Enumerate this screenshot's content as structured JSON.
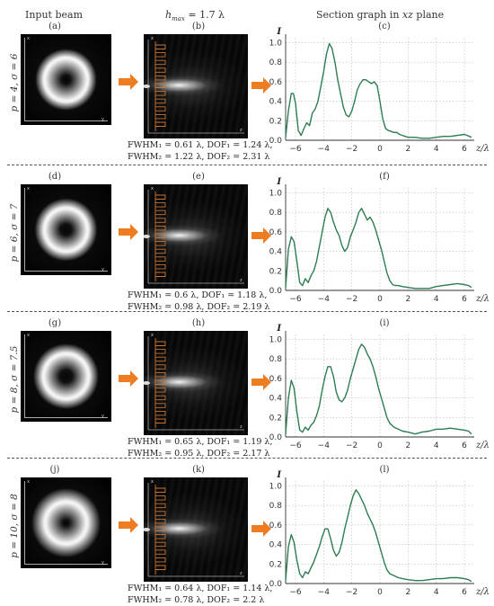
{
  "headers": {
    "input_beam": "Input beam",
    "hmax": "h",
    "hmax_sub": "max",
    "hmax_value": " = 1.7 λ",
    "section_graph": "Section graph in ",
    "section_graph_italic": "xz",
    "section_graph_tail": " plane"
  },
  "axis": {
    "x_label": "z/λ",
    "y_label": "I",
    "x_ticks": [
      -6,
      -4,
      -2,
      0,
      2,
      4,
      6
    ],
    "y_ticks": [
      "0.0",
      "0.2",
      "0.4",
      "0.6",
      "0.8",
      "1.0"
    ],
    "panel_axis_x": "x",
    "panel_axis_y": "y",
    "panel_axis_z": "z"
  },
  "colors": {
    "curve": "#2e7d52",
    "arrow": "#ee7d22",
    "element": "#c87533"
  },
  "rows": [
    {
      "param": "p = 4, σ = 6",
      "labels": [
        "(a)",
        "(b)",
        "(c)"
      ],
      "fwhm1": "FWHM₁ = 0.61 λ, DOF₁ = 1.24 λ,",
      "fwhm2": "FWHM₂ = 1.22 λ, DOF₂ = 2.31 λ",
      "ring": {
        "inner": 0.14,
        "peak": 0.52,
        "outer": 0.8
      },
      "chart_data": {
        "type": "line",
        "x": [
          -6.7,
          -6.5,
          -6.3,
          -6.15,
          -6.0,
          -5.8,
          -5.6,
          -5.4,
          -5.2,
          -5.0,
          -4.8,
          -4.6,
          -4.4,
          -4.2,
          -4.0,
          -3.8,
          -3.6,
          -3.4,
          -3.2,
          -3.0,
          -2.8,
          -2.6,
          -2.4,
          -2.2,
          -2.0,
          -1.8,
          -1.6,
          -1.4,
          -1.2,
          -1.0,
          -0.8,
          -0.6,
          -0.4,
          -0.2,
          0.0,
          0.2,
          0.4,
          0.6,
          0.8,
          1.0,
          1.2,
          1.4,
          1.6,
          1.8,
          2.0,
          2.5,
          3.0,
          3.5,
          4.0,
          4.5,
          5.0,
          5.5,
          6.0,
          6.2,
          6.5
        ],
        "y": [
          0.03,
          0.3,
          0.48,
          0.48,
          0.38,
          0.1,
          0.05,
          0.12,
          0.18,
          0.15,
          0.28,
          0.32,
          0.4,
          0.55,
          0.7,
          0.88,
          0.99,
          0.94,
          0.8,
          0.62,
          0.48,
          0.34,
          0.26,
          0.24,
          0.3,
          0.4,
          0.52,
          0.58,
          0.62,
          0.62,
          0.6,
          0.58,
          0.6,
          0.56,
          0.4,
          0.22,
          0.12,
          0.1,
          0.09,
          0.08,
          0.08,
          0.06,
          0.05,
          0.04,
          0.03,
          0.03,
          0.02,
          0.02,
          0.03,
          0.04,
          0.04,
          0.05,
          0.06,
          0.05,
          0.03
        ],
        "xlim": [
          -6.7,
          6.7
        ],
        "ylim": [
          0,
          1.05
        ]
      }
    },
    {
      "param": "p = 6, σ = 7",
      "labels": [
        "(d)",
        "(e)",
        "(f)"
      ],
      "fwhm1": "FWHM₁ = 0.6 λ, DOF₁ = 1.18 λ,",
      "fwhm2": "FWHM₂ = 0.98 λ, DOF₂ = 2.19 λ",
      "ring": {
        "inner": 0.18,
        "peak": 0.52,
        "outer": 0.82
      },
      "chart_data": {
        "type": "line",
        "x": [
          -6.7,
          -6.5,
          -6.3,
          -6.1,
          -5.9,
          -5.7,
          -5.5,
          -5.3,
          -5.1,
          -4.9,
          -4.7,
          -4.5,
          -4.3,
          -4.1,
          -3.9,
          -3.7,
          -3.5,
          -3.3,
          -3.1,
          -2.9,
          -2.7,
          -2.5,
          -2.3,
          -2.1,
          -1.9,
          -1.7,
          -1.5,
          -1.3,
          -1.1,
          -0.9,
          -0.7,
          -0.5,
          -0.3,
          -0.1,
          0.1,
          0.3,
          0.5,
          0.7,
          0.9,
          1.1,
          1.3,
          1.6,
          2.0,
          2.5,
          3.0,
          3.5,
          4.0,
          4.5,
          5.0,
          5.5,
          6.0,
          6.3,
          6.5
        ],
        "y": [
          0.03,
          0.42,
          0.55,
          0.5,
          0.3,
          0.08,
          0.05,
          0.12,
          0.08,
          0.15,
          0.2,
          0.3,
          0.45,
          0.6,
          0.75,
          0.84,
          0.8,
          0.7,
          0.62,
          0.56,
          0.46,
          0.4,
          0.44,
          0.55,
          0.62,
          0.7,
          0.8,
          0.84,
          0.78,
          0.72,
          0.75,
          0.7,
          0.62,
          0.52,
          0.42,
          0.3,
          0.18,
          0.1,
          0.06,
          0.05,
          0.05,
          0.04,
          0.03,
          0.02,
          0.02,
          0.02,
          0.04,
          0.05,
          0.06,
          0.07,
          0.06,
          0.05,
          0.03
        ],
        "xlim": [
          -6.7,
          6.7
        ],
        "ylim": [
          0,
          1.05
        ]
      }
    },
    {
      "param": "p = 8, σ = 7.5",
      "labels": [
        "(g)",
        "(h)",
        "(i)"
      ],
      "fwhm1": "FWHM₁ = 0.65 λ, DOF₁ = 1.19 λ,",
      "fwhm2": "FWHM₂ = 0.95 λ, DOF₂ = 2.17 λ",
      "ring": {
        "inner": 0.2,
        "peak": 0.55,
        "outer": 0.86
      },
      "chart_data": {
        "type": "line",
        "x": [
          -6.7,
          -6.5,
          -6.3,
          -6.1,
          -5.9,
          -5.7,
          -5.5,
          -5.3,
          -5.1,
          -4.9,
          -4.7,
          -4.5,
          -4.3,
          -4.1,
          -3.9,
          -3.7,
          -3.5,
          -3.3,
          -3.1,
          -2.9,
          -2.7,
          -2.5,
          -2.3,
          -2.1,
          -1.9,
          -1.7,
          -1.5,
          -1.3,
          -1.1,
          -0.9,
          -0.7,
          -0.5,
          -0.3,
          -0.1,
          0.1,
          0.3,
          0.5,
          0.7,
          1.0,
          1.3,
          1.6,
          2.0,
          2.5,
          3.0,
          3.5,
          4.0,
          4.5,
          5.0,
          5.5,
          6.0,
          6.3,
          6.5
        ],
        "y": [
          0.03,
          0.4,
          0.58,
          0.5,
          0.26,
          0.07,
          0.05,
          0.1,
          0.07,
          0.12,
          0.15,
          0.22,
          0.32,
          0.48,
          0.62,
          0.72,
          0.72,
          0.62,
          0.46,
          0.38,
          0.36,
          0.4,
          0.48,
          0.6,
          0.7,
          0.8,
          0.9,
          0.95,
          0.92,
          0.85,
          0.8,
          0.72,
          0.62,
          0.5,
          0.4,
          0.3,
          0.2,
          0.14,
          0.1,
          0.08,
          0.06,
          0.05,
          0.03,
          0.05,
          0.06,
          0.08,
          0.08,
          0.09,
          0.08,
          0.07,
          0.06,
          0.03
        ],
        "xlim": [
          -6.7,
          6.7
        ],
        "ylim": [
          0,
          1.05
        ]
      }
    },
    {
      "param": "p = 10, σ = 8",
      "labels": [
        "(j)",
        "(k)",
        "(l)"
      ],
      "fwhm1": "FWHM₁ = 0.64 λ, DOF₁ = 1.14 λ,",
      "fwhm2": "FWHM₂ = 0.78 λ, DOF₂ = 2.2 λ",
      "ring": {
        "inner": 0.1,
        "peak": 0.5,
        "outer": 0.92
      },
      "chart_data": {
        "type": "line",
        "x": [
          -6.7,
          -6.5,
          -6.3,
          -6.1,
          -5.9,
          -5.7,
          -5.5,
          -5.3,
          -5.1,
          -4.9,
          -4.7,
          -4.5,
          -4.3,
          -4.1,
          -3.9,
          -3.7,
          -3.5,
          -3.3,
          -3.1,
          -2.9,
          -2.7,
          -2.5,
          -2.3,
          -2.1,
          -1.9,
          -1.7,
          -1.5,
          -1.3,
          -1.1,
          -0.9,
          -0.7,
          -0.5,
          -0.3,
          -0.1,
          0.1,
          0.3,
          0.5,
          0.7,
          1.0,
          1.3,
          1.6,
          2.0,
          2.5,
          3.0,
          3.5,
          4.0,
          4.5,
          5.0,
          5.5,
          6.0,
          6.3,
          6.5
        ],
        "y": [
          0.03,
          0.38,
          0.5,
          0.42,
          0.24,
          0.1,
          0.06,
          0.12,
          0.1,
          0.16,
          0.22,
          0.3,
          0.38,
          0.48,
          0.56,
          0.56,
          0.46,
          0.34,
          0.28,
          0.32,
          0.42,
          0.56,
          0.68,
          0.8,
          0.9,
          0.96,
          0.92,
          0.86,
          0.8,
          0.72,
          0.66,
          0.6,
          0.52,
          0.42,
          0.32,
          0.22,
          0.14,
          0.1,
          0.08,
          0.06,
          0.05,
          0.04,
          0.03,
          0.03,
          0.04,
          0.05,
          0.05,
          0.06,
          0.06,
          0.05,
          0.04,
          0.02
        ],
        "xlim": [
          -6.7,
          6.7
        ],
        "ylim": [
          0,
          1.05
        ]
      }
    }
  ]
}
